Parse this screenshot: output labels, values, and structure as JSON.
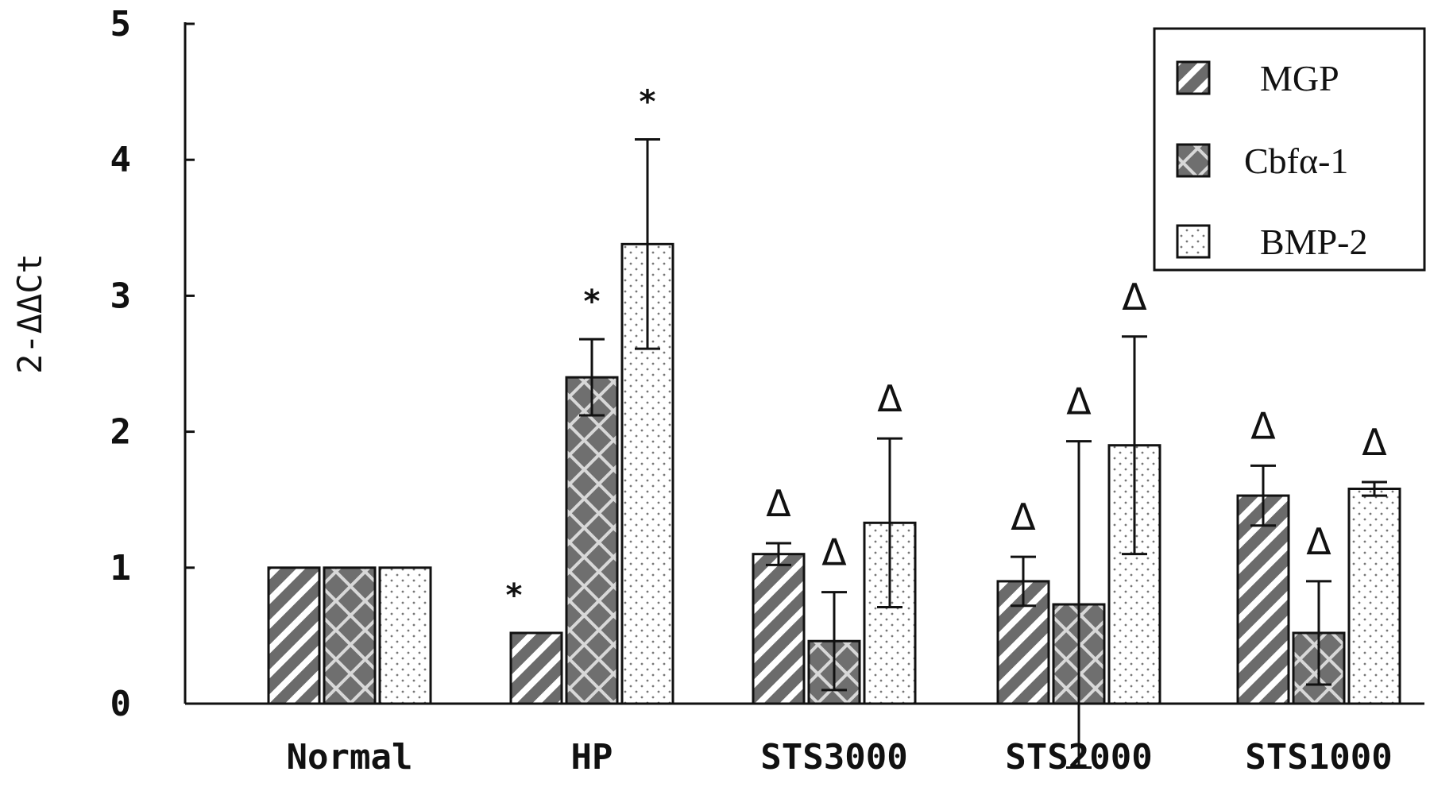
{
  "chart_data": {
    "type": "bar",
    "title": "",
    "xlabel": "",
    "ylabel": "2-ΔΔCt",
    "ylim": [
      0,
      5
    ],
    "yticks": [
      "0",
      "1",
      "2",
      "3",
      "4",
      "5"
    ],
    "categories": [
      "Normal",
      "HP",
      "STS3000",
      "STS2000",
      "STS1000"
    ],
    "legend_position": "top-right",
    "series": [
      {
        "name": "MGP",
        "pattern": "diagonal-stripes",
        "values": [
          1.0,
          0.52,
          1.1,
          0.9,
          1.53
        ],
        "errors": [
          0,
          0,
          0.08,
          0.18,
          0.22
        ],
        "annotations": [
          "",
          "*",
          "Δ",
          "Δ",
          "Δ"
        ]
      },
      {
        "name": "Cbfα-1",
        "pattern": "crosshatch",
        "values": [
          1.0,
          2.4,
          0.46,
          0.73,
          0.52
        ],
        "errors": [
          0,
          0.28,
          0.36,
          1.2,
          0.38
        ],
        "annotations": [
          "",
          "*",
          "Δ",
          "Δ",
          "Δ"
        ]
      },
      {
        "name": "BMP-2",
        "pattern": "dots",
        "values": [
          1.0,
          3.38,
          1.33,
          1.9,
          1.58
        ],
        "errors": [
          0,
          0.77,
          0.62,
          0.8,
          0.05
        ],
        "annotations": [
          "",
          "*",
          "Δ",
          "Δ",
          "Δ"
        ]
      }
    ]
  },
  "colors": {
    "MGP": "#6b6b6b",
    "Cbfα-1": "#6f6f6f",
    "BMP-2": "#ffffff"
  }
}
